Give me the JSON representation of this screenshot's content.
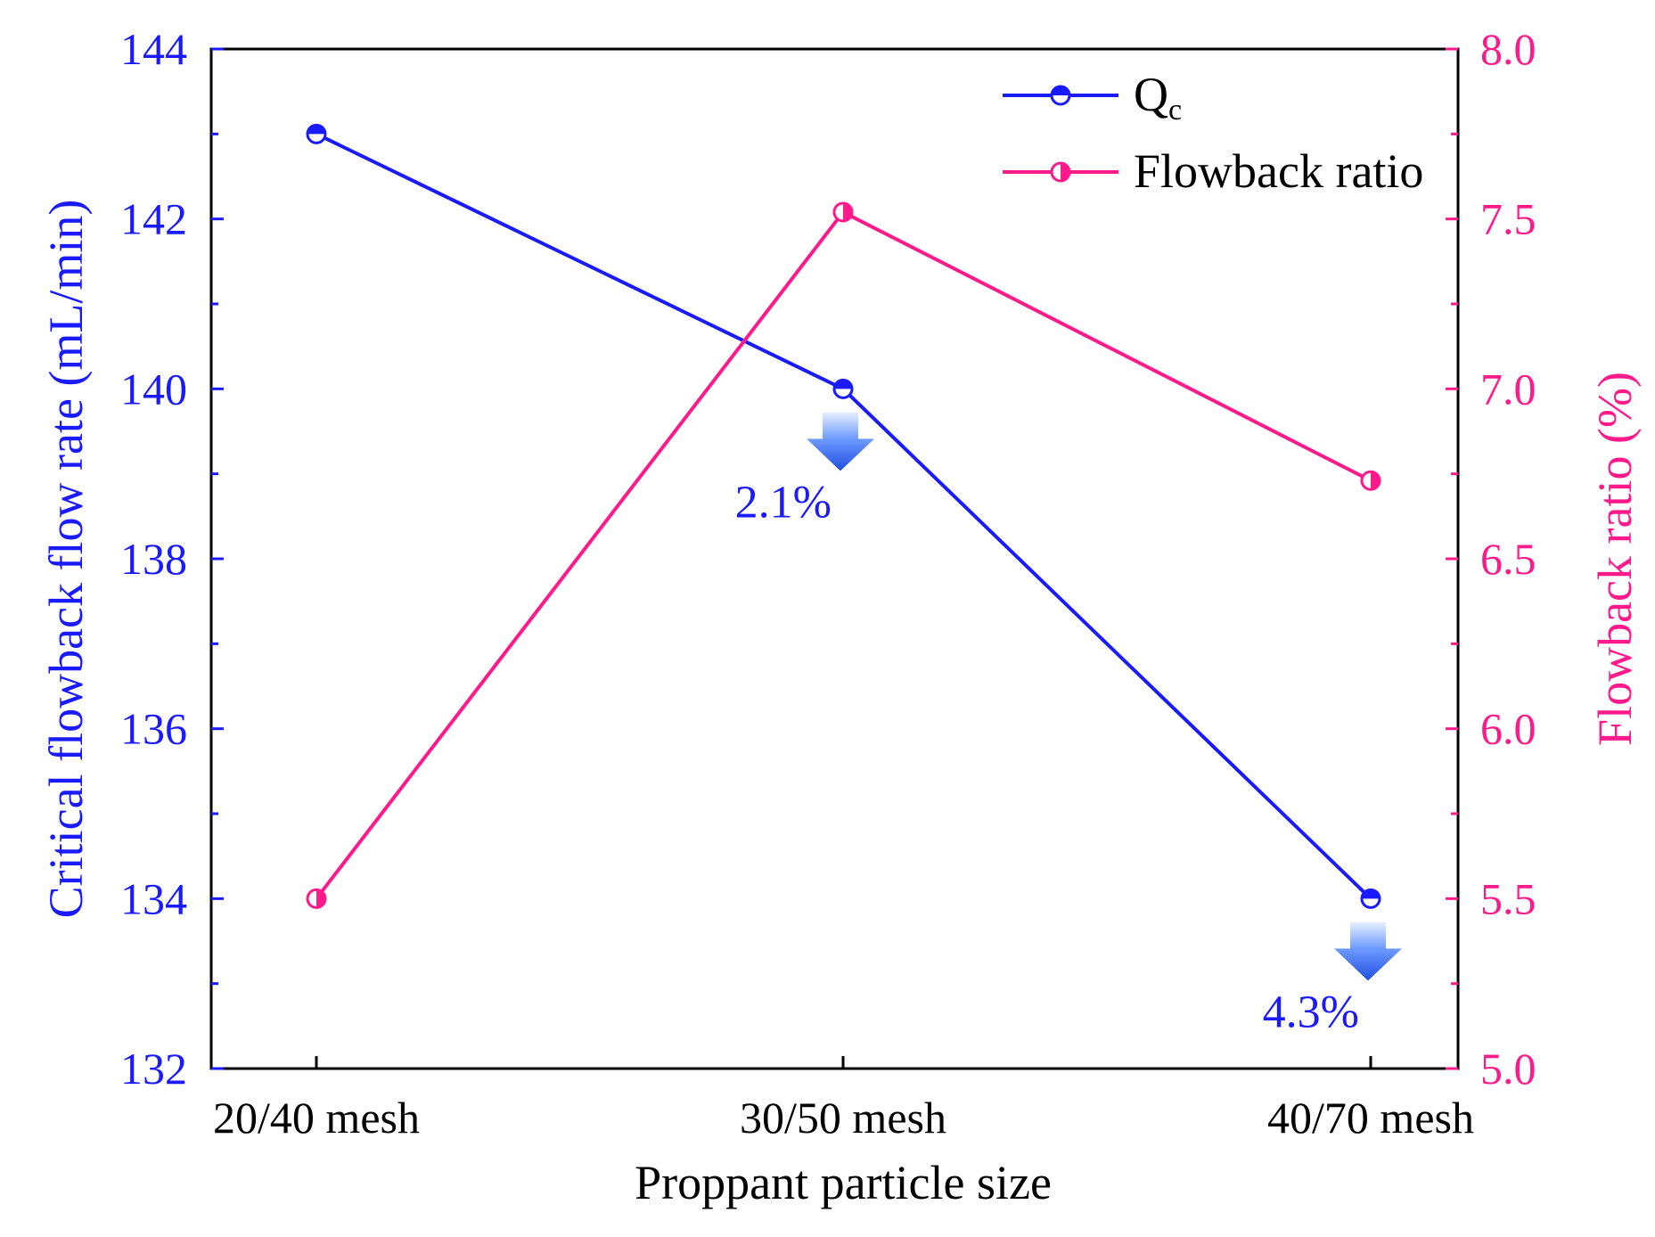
{
  "chart_data": {
    "type": "line",
    "xlabel": "Proppant particle size",
    "categories": [
      "20/40 mesh",
      "30/50 mesh",
      "40/70 mesh"
    ],
    "y_left": {
      "label": "Critical flowback flow rate (mL/min)",
      "range": [
        132,
        144
      ],
      "ticks": [
        "132",
        "134",
        "136",
        "138",
        "140",
        "142",
        "144"
      ],
      "color": "#1a1aff"
    },
    "y_right": {
      "label": "Flowback ratio (%)",
      "range": [
        5.0,
        8.0
      ],
      "ticks": [
        "5.0",
        "5.5",
        "6.0",
        "6.5",
        "7.0",
        "7.5",
        "8.0"
      ],
      "color": "#ff1a8c"
    },
    "series": [
      {
        "name": "Q",
        "name_sub": "c",
        "axis": "left",
        "color": "#1a1aff",
        "values": [
          143,
          140,
          134
        ]
      },
      {
        "name": "Flowback ratio",
        "axis": "right",
        "color": "#ff1a8c",
        "values": [
          5.5,
          7.52,
          6.73
        ]
      }
    ],
    "annotations": [
      {
        "text": "2.1%",
        "category_index": 1,
        "color": "#1a1aff"
      },
      {
        "text": "4.3%",
        "category_index": 2,
        "color": "#1a1aff"
      }
    ],
    "legend_position": "top-right",
    "grid": false
  }
}
